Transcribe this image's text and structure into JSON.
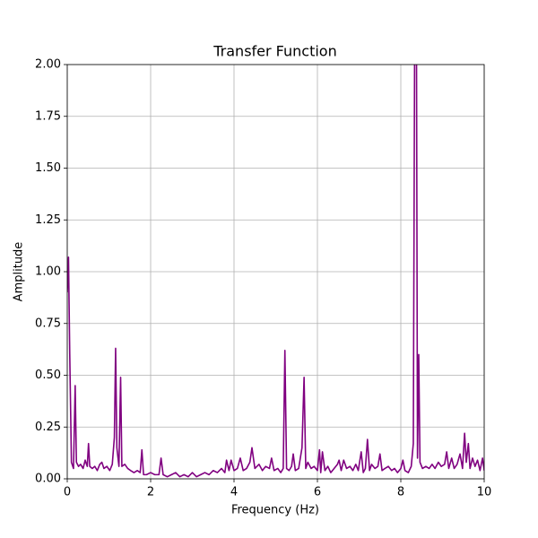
{
  "chart_data": {
    "type": "line",
    "title": "Transfer Function",
    "xlabel": "Frequency (Hz)",
    "ylabel": "Amplitude",
    "xlim": [
      0,
      10
    ],
    "ylim": [
      0,
      2
    ],
    "xticks": [
      0,
      2,
      4,
      6,
      8,
      10
    ],
    "yticks": [
      {
        "value": 0,
        "label": "0.00"
      },
      0.25,
      {
        "value": 0.5,
        "label": "0.50"
      },
      0.75,
      {
        "value": 1,
        "label": "1.00"
      },
      1.25,
      {
        "value": 1.5,
        "label": "1.50"
      },
      1.75,
      {
        "value": 2,
        "label": "2.00"
      }
    ],
    "grid": true,
    "color": "#800080",
    "x": [
      0,
      0.03,
      0.06,
      0.1,
      0.15,
      0.19,
      0.22,
      0.27,
      0.32,
      0.38,
      0.43,
      0.48,
      0.51,
      0.54,
      0.6,
      0.66,
      0.72,
      0.78,
      0.83,
      0.88,
      0.95,
      1.02,
      1.08,
      1.13,
      1.16,
      1.19,
      1.24,
      1.28,
      1.31,
      1.38,
      1.45,
      1.52,
      1.6,
      1.68,
      1.75,
      1.79,
      1.83,
      1.9,
      2.0,
      2.1,
      2.2,
      2.25,
      2.3,
      2.4,
      2.5,
      2.6,
      2.7,
      2.8,
      2.9,
      3.0,
      3.1,
      3.2,
      3.3,
      3.4,
      3.5,
      3.6,
      3.7,
      3.78,
      3.82,
      3.88,
      3.93,
      4.0,
      4.08,
      4.15,
      4.22,
      4.3,
      4.38,
      4.43,
      4.5,
      4.6,
      4.68,
      4.76,
      4.85,
      4.9,
      4.96,
      5.05,
      5.12,
      5.18,
      5.22,
      5.26,
      5.32,
      5.38,
      5.42,
      5.47,
      5.55,
      5.63,
      5.68,
      5.72,
      5.77,
      5.85,
      5.92,
      6.0,
      6.05,
      6.08,
      6.12,
      6.18,
      6.25,
      6.32,
      6.4,
      6.48,
      6.52,
      6.57,
      6.63,
      6.7,
      6.78,
      6.85,
      6.92,
      6.98,
      7.05,
      7.1,
      7.15,
      7.2,
      7.25,
      7.3,
      7.38,
      7.45,
      7.5,
      7.55,
      7.62,
      7.7,
      7.78,
      7.85,
      7.92,
      8.0,
      8.05,
      8.1,
      8.18,
      8.25,
      8.3,
      8.34,
      8.37,
      8.4,
      8.43,
      8.46,
      8.52,
      8.6,
      8.68,
      8.75,
      8.82,
      8.9,
      8.97,
      9.05,
      9.1,
      9.15,
      9.22,
      9.28,
      9.35,
      9.42,
      9.48,
      9.53,
      9.57,
      9.62,
      9.66,
      9.72,
      9.78,
      9.84,
      9.9,
      9.96,
      10.0
    ],
    "values": [
      0.9,
      1.07,
      0.6,
      0.08,
      0.05,
      0.45,
      0.08,
      0.06,
      0.07,
      0.05,
      0.09,
      0.06,
      0.17,
      0.06,
      0.05,
      0.06,
      0.04,
      0.07,
      0.08,
      0.05,
      0.06,
      0.04,
      0.07,
      0.2,
      0.63,
      0.15,
      0.06,
      0.49,
      0.06,
      0.07,
      0.05,
      0.04,
      0.03,
      0.04,
      0.03,
      0.14,
      0.02,
      0.02,
      0.03,
      0.02,
      0.02,
      0.1,
      0.02,
      0.01,
      0.02,
      0.03,
      0.01,
      0.02,
      0.01,
      0.03,
      0.01,
      0.02,
      0.03,
      0.02,
      0.04,
      0.03,
      0.05,
      0.03,
      0.09,
      0.04,
      0.09,
      0.04,
      0.05,
      0.1,
      0.04,
      0.05,
      0.08,
      0.15,
      0.05,
      0.07,
      0.04,
      0.06,
      0.05,
      0.1,
      0.04,
      0.05,
      0.03,
      0.05,
      0.62,
      0.05,
      0.04,
      0.06,
      0.12,
      0.04,
      0.05,
      0.15,
      0.49,
      0.05,
      0.08,
      0.05,
      0.06,
      0.04,
      0.14,
      0.03,
      0.13,
      0.04,
      0.06,
      0.03,
      0.05,
      0.07,
      0.09,
      0.04,
      0.09,
      0.05,
      0.06,
      0.04,
      0.07,
      0.04,
      0.13,
      0.03,
      0.05,
      0.19,
      0.04,
      0.07,
      0.05,
      0.06,
      0.12,
      0.04,
      0.05,
      0.06,
      0.04,
      0.05,
      0.03,
      0.05,
      0.09,
      0.04,
      0.03,
      0.06,
      0.17,
      2.6,
      2.6,
      0.1,
      0.6,
      0.08,
      0.05,
      0.06,
      0.05,
      0.07,
      0.05,
      0.08,
      0.06,
      0.07,
      0.13,
      0.05,
      0.1,
      0.05,
      0.07,
      0.12,
      0.05,
      0.22,
      0.08,
      0.17,
      0.05,
      0.1,
      0.06,
      0.09,
      0.04,
      0.1,
      0.04
    ]
  }
}
